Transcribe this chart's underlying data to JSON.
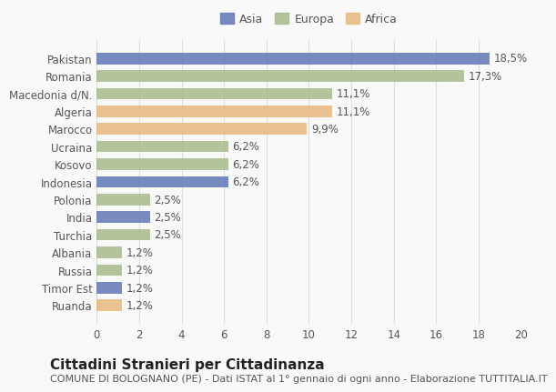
{
  "categories": [
    "Pakistan",
    "Romania",
    "Macedonia d/N.",
    "Algeria",
    "Marocco",
    "Ucraina",
    "Kosovo",
    "Indonesia",
    "Polonia",
    "India",
    "Turchia",
    "Albania",
    "Russia",
    "Timor Est",
    "Ruanda"
  ],
  "values": [
    18.5,
    17.3,
    11.1,
    11.1,
    9.9,
    6.2,
    6.2,
    6.2,
    2.5,
    2.5,
    2.5,
    1.2,
    1.2,
    1.2,
    1.2
  ],
  "labels": [
    "18,5%",
    "17,3%",
    "11,1%",
    "11,1%",
    "9,9%",
    "6,2%",
    "6,2%",
    "6,2%",
    "2,5%",
    "2,5%",
    "2,5%",
    "1,2%",
    "1,2%",
    "1,2%",
    "1,2%"
  ],
  "continents": [
    "Asia",
    "Europa",
    "Europa",
    "Africa",
    "Africa",
    "Europa",
    "Europa",
    "Asia",
    "Europa",
    "Asia",
    "Europa",
    "Europa",
    "Europa",
    "Asia",
    "Africa"
  ],
  "colors": {
    "Asia": "#6278b8",
    "Europa": "#a8bb8a",
    "Africa": "#e8b97e"
  },
  "legend_order": [
    "Asia",
    "Europa",
    "Africa"
  ],
  "title": "Cittadini Stranieri per Cittadinanza",
  "subtitle": "COMUNE DI BOLOGNANO (PE) - Dati ISTAT al 1° gennaio di ogni anno - Elaborazione TUTTITALIA.IT",
  "xlim": [
    0,
    20
  ],
  "xticks": [
    0,
    2,
    4,
    6,
    8,
    10,
    12,
    14,
    16,
    18,
    20
  ],
  "background_color": "#f9f9f9",
  "bar_height": 0.65,
  "grid_color": "#dddddd",
  "label_fontsize": 8.5,
  "title_fontsize": 11,
  "subtitle_fontsize": 8,
  "tick_fontsize": 8.5,
  "legend_fontsize": 9
}
